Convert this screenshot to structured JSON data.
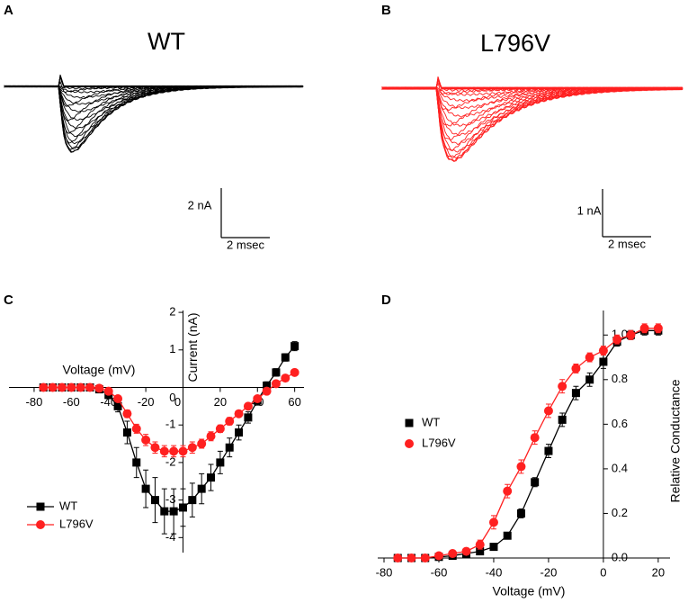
{
  "chart_data": [
    {
      "type": "trace",
      "panel": "A",
      "title": "WT",
      "color": "#000000",
      "scale_y_label": "2 nA",
      "scale_x_label": "2 msec"
    },
    {
      "type": "trace",
      "panel": "B",
      "title": "L796V",
      "color": "#ff2020",
      "scale_y_label": "1 nA",
      "scale_x_label": "2 msec"
    },
    {
      "type": "line",
      "panel": "C",
      "xlabel": "Voltage (mV)",
      "ylabel": "Current (nA)",
      "x": [
        -75,
        -70,
        -65,
        -60,
        -55,
        -50,
        -45,
        -40,
        -35,
        -30,
        -25,
        -20,
        -15,
        -10,
        -5,
        0,
        5,
        10,
        15,
        20,
        25,
        30,
        35,
        40,
        45,
        50,
        55,
        60
      ],
      "xlim": [
        -93.5,
        65
      ],
      "ylim": [
        -4.4,
        2.05
      ],
      "xticks": [
        -80,
        -60,
        -40,
        -20,
        0,
        20,
        40,
        60
      ],
      "yticks": [
        -4,
        -3,
        -2,
        -1,
        0,
        1,
        2
      ],
      "legend": "lower left",
      "series": [
        {
          "name": "WT",
          "color": "#000000",
          "marker": "square",
          "values": [
            0,
            0,
            0,
            0,
            0,
            0,
            -0.05,
            -0.2,
            -0.5,
            -1.2,
            -2.0,
            -2.7,
            -3.0,
            -3.3,
            -3.3,
            -3.2,
            -3.0,
            -2.7,
            -2.4,
            -2.0,
            -1.6,
            -1.2,
            -0.8,
            -0.35,
            0.05,
            0.4,
            0.8,
            1.1
          ],
          "errors": [
            0,
            0,
            0,
            0,
            0,
            0.05,
            0.05,
            0.1,
            0.15,
            0.3,
            0.4,
            0.5,
            0.6,
            0.6,
            0.6,
            0.5,
            0.45,
            0.4,
            0.35,
            0.3,
            0.25,
            0.2,
            0.15,
            0.12,
            0.1,
            0.1,
            0.1,
            0.12
          ]
        },
        {
          "name": "L796V",
          "color": "#ff2020",
          "marker": "circle",
          "values": [
            0,
            0,
            0,
            0,
            0,
            0,
            -0.02,
            -0.1,
            -0.3,
            -0.7,
            -1.1,
            -1.4,
            -1.6,
            -1.7,
            -1.7,
            -1.7,
            -1.6,
            -1.5,
            -1.3,
            -1.1,
            -0.9,
            -0.7,
            -0.5,
            -0.3,
            -0.1,
            0.1,
            0.25,
            0.4
          ],
          "errors": [
            0,
            0,
            0,
            0,
            0,
            0.03,
            0.03,
            0.05,
            0.08,
            0.1,
            0.12,
            0.15,
            0.15,
            0.15,
            0.15,
            0.15,
            0.15,
            0.12,
            0.12,
            0.1,
            0.1,
            0.08,
            0.08,
            0.06,
            0.06,
            0.05,
            0.05,
            0.05
          ]
        }
      ]
    },
    {
      "type": "line",
      "panel": "D",
      "xlabel": "Voltage (mV)",
      "ylabel": "Relative Conductance",
      "x": [
        -75,
        -70,
        -65,
        -60,
        -55,
        -50,
        -45,
        -40,
        -35,
        -30,
        -25,
        -20,
        -15,
        -10,
        -5,
        0,
        5,
        10,
        15,
        20
      ],
      "xlim": [
        -82.3,
        24.3
      ],
      "ylim": [
        0,
        1.11
      ],
      "xticks": [
        -80,
        -60,
        -40,
        -20,
        0,
        20
      ],
      "yticks": [
        {
          "value": 0,
          "label": "0.0"
        },
        0.2,
        0.4,
        0.6,
        0.8,
        {
          "value": 1,
          "label": "1.0"
        }
      ],
      "legend": "upper left",
      "series": [
        {
          "name": "WT",
          "color": "#000000",
          "marker": "square",
          "values": [
            0,
            0,
            0,
            0.005,
            0.01,
            0.02,
            0.03,
            0.05,
            0.1,
            0.2,
            0.34,
            0.48,
            0.62,
            0.74,
            0.8,
            0.88,
            0.97,
            1.0,
            1.02,
            1.02
          ],
          "errors": [
            0.005,
            0.005,
            0.005,
            0.005,
            0.005,
            0.005,
            0.01,
            0.01,
            0.01,
            0.02,
            0.02,
            0.03,
            0.03,
            0.03,
            0.03,
            0.03,
            0.02,
            0.02,
            0.02,
            0.02
          ]
        },
        {
          "name": "L796V",
          "color": "#ff2020",
          "marker": "circle",
          "values": [
            0,
            0,
            0,
            0.01,
            0.02,
            0.03,
            0.06,
            0.16,
            0.3,
            0.41,
            0.54,
            0.66,
            0.77,
            0.85,
            0.9,
            0.93,
            0.98,
            1.0,
            1.03,
            1.03
          ],
          "errors": [
            0.005,
            0.005,
            0.005,
            0.005,
            0.01,
            0.01,
            0.02,
            0.03,
            0.03,
            0.03,
            0.03,
            0.03,
            0.03,
            0.02,
            0.02,
            0.02,
            0.02,
            0.02,
            0.02,
            0.02
          ]
        }
      ]
    }
  ]
}
